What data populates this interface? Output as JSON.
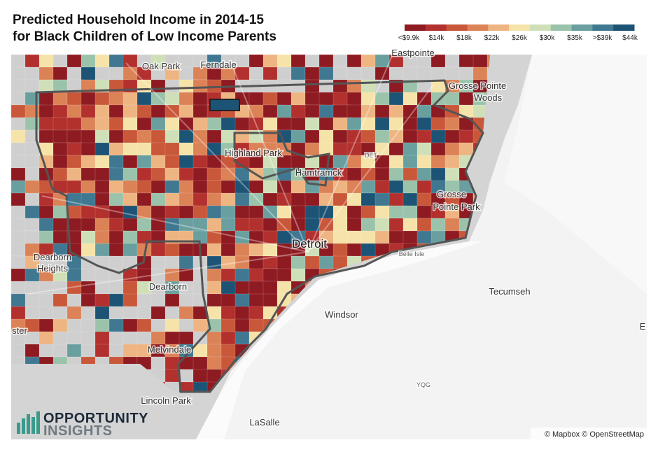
{
  "header": {
    "title_lines": [
      "Predicted Household Income in 2014-15",
      "for Black Children of Low Income Parents"
    ]
  },
  "legend": {
    "labels": [
      "<$9.9k",
      "$14k",
      "$18k",
      "$22k",
      "$26k",
      "$30k",
      "$35k",
      ">$39k",
      "$44k"
    ],
    "colors": [
      "#8e1b22",
      "#b2302d",
      "#c9573a",
      "#dc8257",
      "#eeb482",
      "#f6e3a9",
      "#cfe0b8",
      "#9bc3ab",
      "#6a9fa0",
      "#3f7890",
      "#1d5374"
    ]
  },
  "places": [
    "Oak Park",
    "Ferndale",
    "Eastpointe",
    "Grosse Pointe",
    "Woods",
    "Highland Park",
    "Hamtramck",
    "DET",
    "Grosse",
    "Pointe Park",
    "Detroit",
    "Belle Isle",
    "Dearborn",
    "Heights",
    "Dearborn",
    "Tecumseh",
    "Windsor",
    "ster",
    "E",
    "Melvindale",
    "YQG",
    "Lincoln Park",
    "LaSalle"
  ],
  "logo": {
    "line1": "OPPORTUNITY",
    "line2": "INSIGHTS"
  },
  "attribution": "© Mapbox © OpenStreetMap"
}
